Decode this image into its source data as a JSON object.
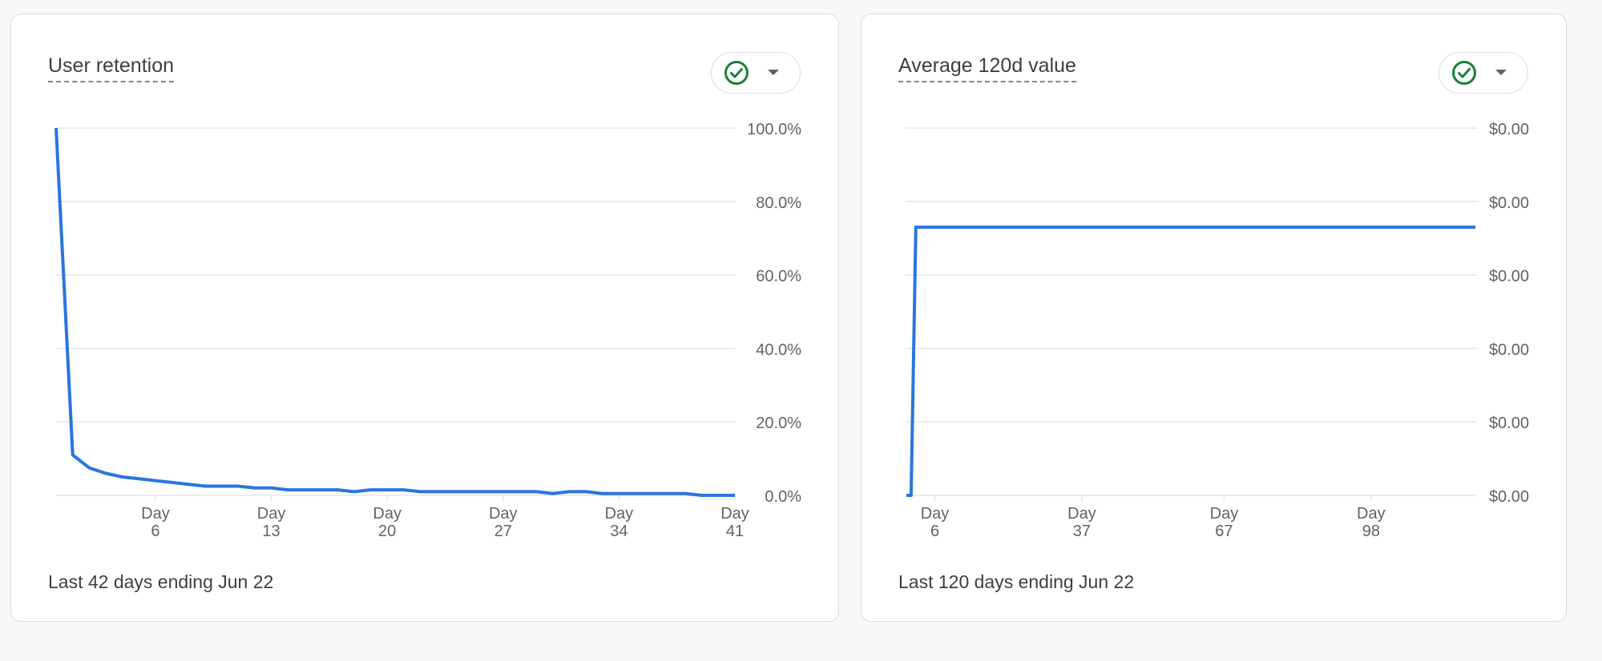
{
  "cards": [
    {
      "title": "User retention",
      "footer": "Last 42 days ending Jun 22",
      "status_icon": "check-circle-icon",
      "dropdown_icon": "caret-down-icon"
    },
    {
      "title": "Average 120d value",
      "footer": "Last 120 days ending Jun 22",
      "status_icon": "check-circle-icon",
      "dropdown_icon": "caret-down-icon"
    }
  ],
  "colors": {
    "line": "#2a74e0",
    "grid": "#e3e5e8",
    "check": "#188038",
    "label": "#5f6368"
  },
  "chart_data": [
    {
      "type": "line",
      "title": "User retention",
      "x": [
        0,
        1,
        2,
        3,
        4,
        5,
        6,
        7,
        8,
        9,
        10,
        11,
        12,
        13,
        14,
        15,
        16,
        17,
        18,
        19,
        20,
        21,
        22,
        23,
        24,
        25,
        26,
        27,
        28,
        29,
        30,
        31,
        32,
        33,
        34,
        35,
        36,
        37,
        38,
        39,
        40,
        41
      ],
      "values": [
        100,
        11,
        7.5,
        6,
        5,
        4.5,
        4,
        3.5,
        3,
        2.5,
        2.5,
        2.5,
        2,
        2,
        1.5,
        1.5,
        1.5,
        1.5,
        1,
        1.5,
        1.5,
        1.5,
        1,
        1,
        1,
        1,
        1,
        1,
        1,
        1,
        0.5,
        1,
        1,
        0.5,
        0.5,
        0.5,
        0.5,
        0.5,
        0.5,
        0,
        0,
        0
      ],
      "xlim": [
        0,
        41
      ],
      "ylim": [
        0,
        100
      ],
      "y_ticks": [
        "100.0%",
        "80.0%",
        "60.0%",
        "40.0%",
        "20.0%",
        "0.0%"
      ],
      "x_ticks": [
        {
          "x": 6,
          "label": [
            "Day",
            "6"
          ]
        },
        {
          "x": 13,
          "label": [
            "Day",
            "13"
          ]
        },
        {
          "x": 20,
          "label": [
            "Day",
            "20"
          ]
        },
        {
          "x": 27,
          "label": [
            "Day",
            "27"
          ]
        },
        {
          "x": 34,
          "label": [
            "Day",
            "34"
          ]
        },
        {
          "x": 41,
          "label": [
            "Day",
            "41"
          ]
        }
      ],
      "grid": true,
      "y_axis_side": "right"
    },
    {
      "type": "line",
      "title": "Average 120d value",
      "x": [
        0,
        1,
        2,
        120
      ],
      "values": [
        0,
        0,
        73,
        73
      ],
      "xlim": [
        0,
        120
      ],
      "ylim": [
        0,
        100
      ],
      "y_ticks": [
        "$0.00",
        "$0.00",
        "$0.00",
        "$0.00",
        "$0.00",
        "$0.00"
      ],
      "x_ticks": [
        {
          "x": 6,
          "label": [
            "Day",
            "6"
          ]
        },
        {
          "x": 37,
          "label": [
            "Day",
            "37"
          ]
        },
        {
          "x": 67,
          "label": [
            "Day",
            "67"
          ]
        },
        {
          "x": 98,
          "label": [
            "Day",
            "98"
          ]
        }
      ],
      "grid": true,
      "y_axis_side": "right"
    }
  ]
}
